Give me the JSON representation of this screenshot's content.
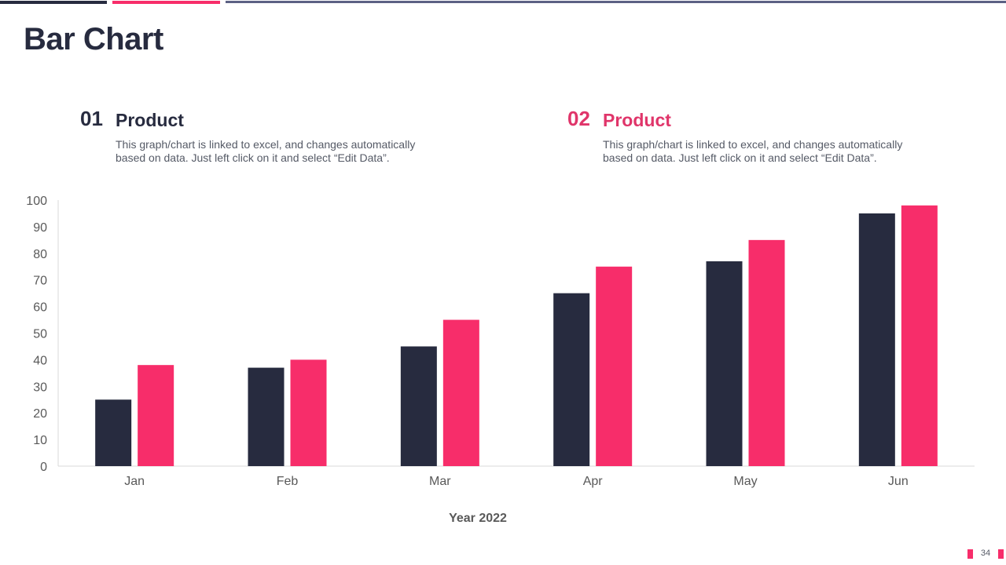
{
  "page": {
    "title": "Bar Chart",
    "page_number": "34"
  },
  "products": [
    {
      "number": "01",
      "name": "Product",
      "description": "This graph/chart is linked to excel, and changes automatically based on data. Just left click on it and select “Edit Data”."
    },
    {
      "number": "02",
      "name": "Product",
      "description": "This graph/chart is linked to excel, and changes automatically based on data. Just left click on it and select “Edit Data”."
    }
  ],
  "colors": {
    "dark": "#272b3f",
    "pink": "#f72d6a",
    "slate": "#5c6184"
  },
  "chart_data": {
    "type": "bar",
    "categories": [
      "Jan",
      "Feb",
      "Mar",
      "Apr",
      "May",
      "Jun"
    ],
    "series": [
      {
        "values": [
          25,
          37,
          45,
          65,
          77,
          95
        ],
        "color": "#272b3f"
      },
      {
        "values": [
          38,
          40,
          55,
          75,
          85,
          98
        ],
        "color": "#f72d6a"
      }
    ],
    "title": "",
    "xlabel": "Year 2022",
    "ylabel": "",
    "ylim": [
      0,
      100
    ],
    "yticks": [
      0,
      10,
      20,
      30,
      40,
      50,
      60,
      70,
      80,
      90,
      100
    ],
    "grid": false,
    "legend": "none"
  }
}
